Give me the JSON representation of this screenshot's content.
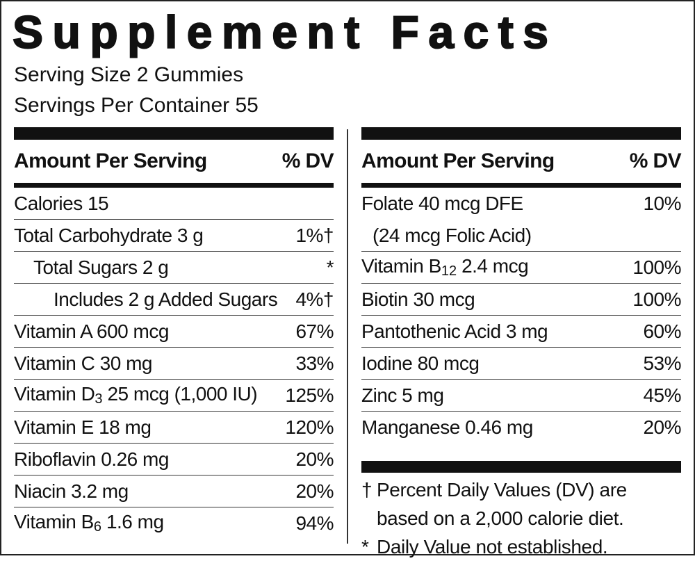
{
  "title": "Supplement Facts",
  "serving_size": "Serving Size 2 Gummies",
  "servings_per_container": "Servings Per Container 55",
  "left": {
    "header": {
      "amount": "Amount Per Serving",
      "dv": "% DV"
    },
    "rows": [
      {
        "name": "Calories 15",
        "dv": ""
      },
      {
        "name": "Total Carbohydrate 3 g",
        "dv": "1%†"
      },
      {
        "name": "Total Sugars 2 g",
        "dv": "*"
      },
      {
        "name": "Includes 2 g Added Sugars",
        "dv": "4%†"
      },
      {
        "name": "Vitamin A 600 mcg",
        "dv": "67%"
      },
      {
        "name": "Vitamin C 30 mg",
        "dv": "33%"
      },
      {
        "name": "Vitamin D",
        "sub": "3",
        "amount": "25 mcg (1,000 IU)",
        "dv": "125%"
      },
      {
        "name": "Vitamin E 18 mg",
        "dv": "120%"
      },
      {
        "name": "Riboflavin 0.26 mg",
        "dv": "20%"
      },
      {
        "name": "Niacin 3.2 mg",
        "dv": "20%"
      },
      {
        "name": "Vitamin B",
        "sub": "6",
        "amount": "1.6 mg",
        "dv": "94%"
      }
    ]
  },
  "right": {
    "header": {
      "amount": "Amount Per Serving",
      "dv": "% DV"
    },
    "rows": [
      {
        "name": "Folate 40 mcg DFE",
        "note": "(24 mcg Folic Acid)",
        "dv": "10%"
      },
      {
        "name": "Vitamin B",
        "sub": "12",
        "amount": "2.4 mcg",
        "dv": "100%"
      },
      {
        "name": "Biotin 30 mcg",
        "dv": "100%"
      },
      {
        "name": "Pantothenic Acid 3 mg",
        "dv": "60%"
      },
      {
        "name": "Iodine 80 mcg",
        "dv": "53%"
      },
      {
        "name": "Zinc 5 mg",
        "dv": "45%"
      },
      {
        "name": "Manganese 0.46 mg",
        "dv": "20%"
      }
    ]
  },
  "footnotes": [
    {
      "symbol": "†",
      "lines": [
        "Percent Daily Values (DV) are",
        "based on a 2,000 calorie diet."
      ]
    },
    {
      "symbol": "*",
      "lines": [
        "Daily Value not established."
      ]
    }
  ]
}
